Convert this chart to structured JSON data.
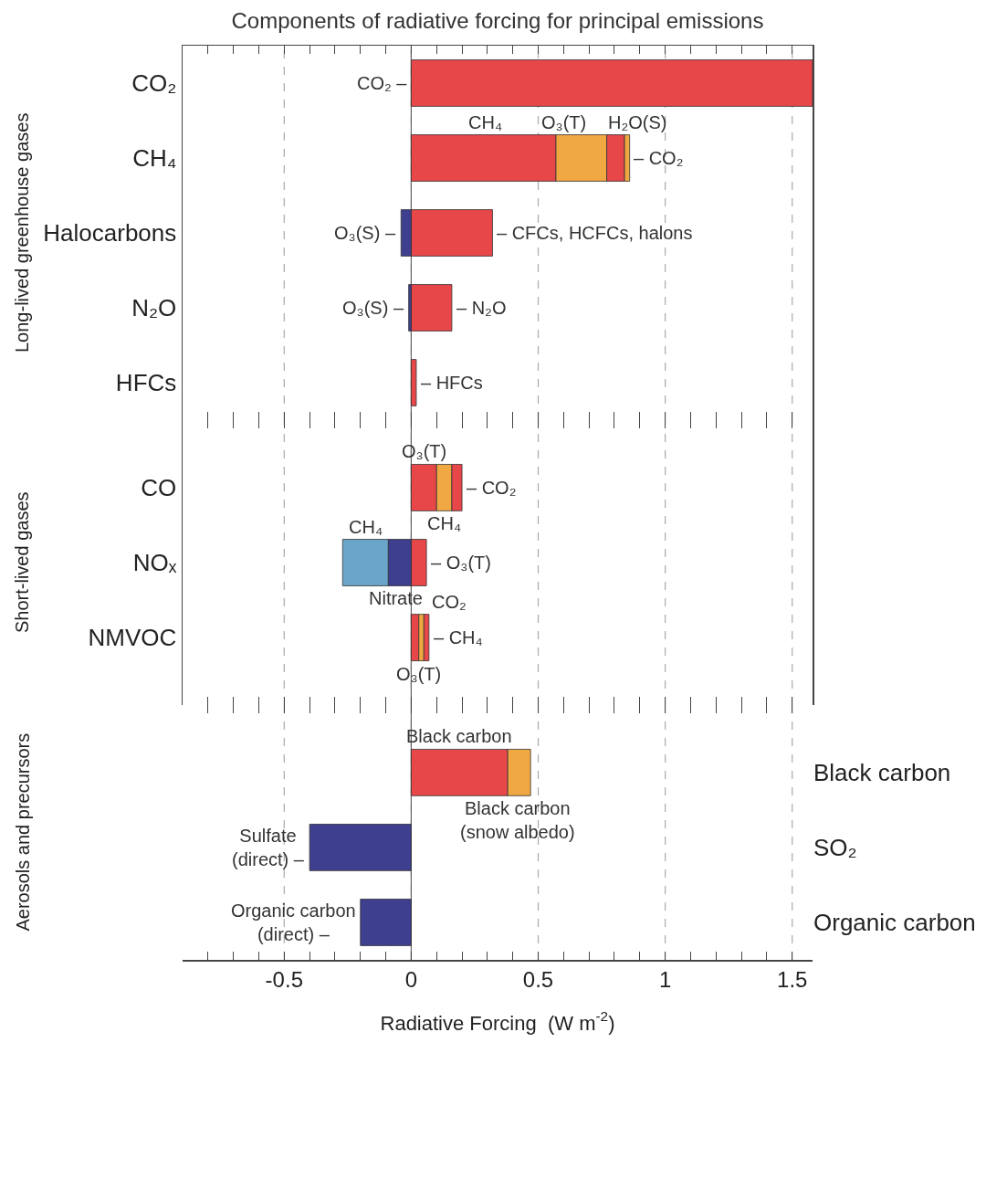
{
  "chart_data": [
    {
      "type": "bar",
      "orientation": "horizontal",
      "title": "Components of radiative forcing for principal emissions",
      "ylabel": "Long-lived greenhouse gases",
      "categories": [
        "CO₂",
        "CH₄",
        "Halocarbons",
        "N₂O",
        "HFCs"
      ],
      "series": [
        {
          "color": "#e8474a",
          "values": [
            1.58,
            0.57,
            0.32,
            0.16,
            0.02
          ],
          "base": [
            0,
            0,
            0,
            0,
            0
          ]
        },
        {
          "color": "#f0a842",
          "values": [
            null,
            0.2,
            null,
            null,
            null
          ],
          "base": [
            null,
            0.57,
            null,
            null,
            null
          ]
        },
        {
          "color": "#e8474a",
          "values": [
            null,
            0.07,
            null,
            null,
            null
          ],
          "base": [
            null,
            0.77,
            null,
            null,
            null
          ]
        },
        {
          "color": "#f0a842",
          "values": [
            null,
            0.02,
            null,
            null,
            null
          ],
          "base": [
            null,
            0.84,
            null,
            null,
            null
          ]
        },
        {
          "color": "#3f3f8f",
          "values": [
            null,
            null,
            -0.04,
            -0.01,
            null
          ],
          "base": [
            null,
            null,
            0,
            0,
            null
          ]
        }
      ],
      "xlim": [
        -0.9,
        1.58
      ],
      "xticks": [
        {
          "value": -0.8,
          "label": null
        },
        {
          "value": -0.7,
          "label": null
        },
        {
          "value": -0.6,
          "label": null
        },
        -0.5,
        {
          "value": -0.4,
          "label": null
        },
        {
          "value": -0.3,
          "label": null
        },
        {
          "value": -0.2,
          "label": null
        },
        {
          "value": -0.1,
          "label": null
        },
        0,
        {
          "value": 0.1,
          "label": null
        },
        {
          "value": 0.2,
          "label": null
        },
        {
          "value": 0.3,
          "label": null
        },
        {
          "value": 0.4,
          "label": null
        },
        0.5,
        {
          "value": 0.6,
          "label": null
        },
        {
          "value": 0.7,
          "label": null
        },
        {
          "value": 0.8,
          "label": null
        },
        {
          "value": 0.9,
          "label": null
        },
        1,
        {
          "value": 1.1,
          "label": null
        },
        {
          "value": 1.2,
          "label": null
        },
        {
          "value": 1.3,
          "label": null
        },
        {
          "value": 1.4,
          "label": null
        },
        1.5
      ],
      "grid": "x",
      "tick_labels": "y",
      "ref_lines": [
        {
          "axis": "x",
          "value": 0
        }
      ],
      "annotations": [
        "CO₂ –",
        "CH₄",
        "O₃(T)",
        "H₂O(S)",
        "– CO₂",
        "O₃(S) –",
        "– CFCs, HCFCs, halons",
        "O₃(S) –",
        "– N₂O",
        "– HFCs"
      ]
    },
    {
      "type": "bar",
      "orientation": "horizontal",
      "ylabel": "Short-lived gases",
      "categories": [
        "CO",
        "NOₓ",
        "NMVOC"
      ],
      "series": [
        {
          "color": "#e8474a",
          "values": [
            0.1,
            null,
            0.03
          ],
          "base": [
            0,
            null,
            0
          ]
        },
        {
          "color": "#f0a842",
          "values": [
            0.06,
            null,
            0.02
          ],
          "base": [
            0.1,
            null,
            0.03
          ]
        },
        {
          "color": "#e8474a",
          "values": [
            0.04,
            0.06,
            0.02
          ],
          "base": [
            0.16,
            0,
            0.05
          ]
        },
        {
          "color": "#6aa6c9",
          "values": [
            null,
            -0.18,
            null
          ],
          "base": [
            null,
            -0.09,
            null
          ]
        },
        {
          "color": "#3f3f8f",
          "values": [
            null,
            -0.09,
            null
          ],
          "base": [
            null,
            0,
            null
          ]
        }
      ],
      "xlim": [
        -0.9,
        1.58
      ],
      "xticks": [
        {
          "value": -0.8,
          "label": null
        },
        {
          "value": -0.7,
          "label": null
        },
        {
          "value": -0.6,
          "label": null
        },
        -0.5,
        {
          "value": -0.4,
          "label": null
        },
        {
          "value": -0.3,
          "label": null
        },
        {
          "value": -0.2,
          "label": null
        },
        {
          "value": -0.1,
          "label": null
        },
        0,
        {
          "value": 0.1,
          "label": null
        },
        {
          "value": 0.2,
          "label": null
        },
        {
          "value": 0.3,
          "label": null
        },
        {
          "value": 0.4,
          "label": null
        },
        0.5,
        {
          "value": 0.6,
          "label": null
        },
        {
          "value": 0.7,
          "label": null
        },
        {
          "value": 0.8,
          "label": null
        },
        {
          "value": 0.9,
          "label": null
        },
        1,
        {
          "value": 1.1,
          "label": null
        },
        {
          "value": 1.2,
          "label": null
        },
        {
          "value": 1.3,
          "label": null
        },
        {
          "value": 1.4,
          "label": null
        },
        1.5
      ],
      "grid": "x",
      "tick_labels": "y",
      "ref_lines": [
        {
          "axis": "x",
          "value": 0
        }
      ],
      "annotations": [
        "O₃(T)",
        "CH₄",
        "– CO₂",
        "CH₄",
        "Nitrate",
        "– O₃(T)",
        "CO₂",
        "O₃(T)",
        "– CH₄"
      ]
    },
    {
      "type": "bar",
      "orientation": "horizontal",
      "ylabel": "Aerosols and precursors",
      "xlabel": "Radiative Forcing  (W m$^{-2}$)",
      "categories": [
        "Black carbon",
        "SO₂",
        "Organic carbon"
      ],
      "series": [
        {
          "color": "#e8474a",
          "values": [
            0.38,
            null,
            null
          ],
          "base": [
            0,
            null,
            null
          ],
          "axis": "y2"
        },
        {
          "color": "#f0a842",
          "values": [
            0.09,
            null,
            null
          ],
          "base": [
            0.38,
            null,
            null
          ],
          "axis": "y2"
        },
        {
          "color": "#3f3f8f",
          "values": [
            null,
            -0.4,
            -0.2
          ],
          "base": [
            null,
            0,
            0
          ],
          "axis": "y2"
        }
      ],
      "xlim": [
        -0.9,
        1.58
      ],
      "xticks": [
        {
          "value": -0.8,
          "label": null
        },
        {
          "value": -0.7,
          "label": null
        },
        {
          "value": -0.6,
          "label": null
        },
        -0.5,
        {
          "value": -0.4,
          "label": null
        },
        {
          "value": -0.3,
          "label": null
        },
        {
          "value": -0.2,
          "label": null
        },
        {
          "value": -0.1,
          "label": null
        },
        0,
        {
          "value": 0.1,
          "label": null
        },
        {
          "value": 0.2,
          "label": null
        },
        {
          "value": 0.3,
          "label": null
        },
        {
          "value": 0.4,
          "label": null
        },
        0.5,
        {
          "value": 0.6,
          "label": null
        },
        {
          "value": 0.7,
          "label": null
        },
        {
          "value": 0.8,
          "label": null
        },
        {
          "value": 0.9,
          "label": null
        },
        1,
        {
          "value": 1.1,
          "label": null
        },
        {
          "value": 1.2,
          "label": null
        },
        {
          "value": 1.3,
          "label": null
        },
        {
          "value": 1.4,
          "label": null
        },
        1.5
      ],
      "grid": "x",
      "ref_lines": [
        {
          "axis": "x",
          "value": 0
        }
      ],
      "annotations": [
        "Black carbon",
        "Black carbon\n(snow albedo)",
        "Sulfate\n(direct) –",
        "Organic carbon\n(direct) –"
      ]
    }
  ]
}
